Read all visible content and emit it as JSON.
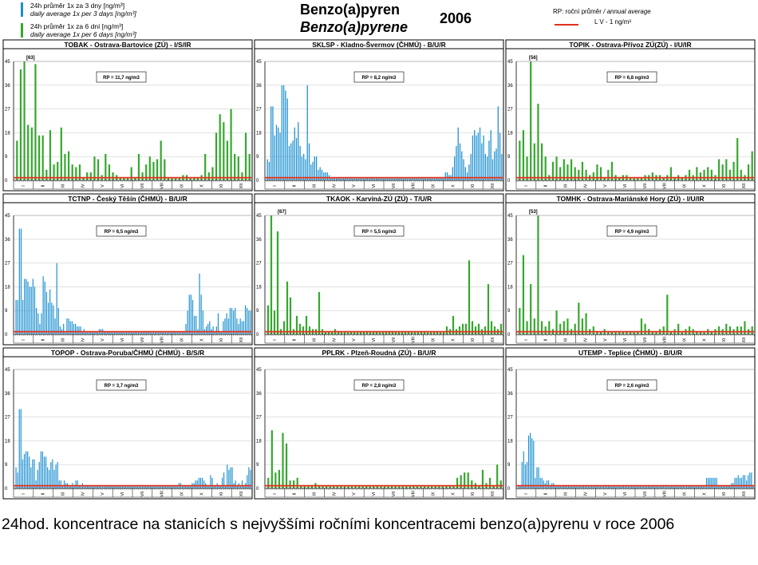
{
  "header": {
    "legend_3day_cz": "24h průměr 1x za 3 dny [ng/m³]",
    "legend_3day_en": "daily average 1x per 3 days [ng/m³]",
    "legend_6day_cz": "24h průměr 1x za 6 dní [ng/m³]",
    "legend_6day_en": "daily average 1x per 6 days [ng/m³]",
    "title_cz": "Benzo(a)pyren",
    "title_en": "Benzo(a)pyrene",
    "year": "2006",
    "rp_label_cz": "RP: roční průměr",
    "rp_label_en": "/ annual average",
    "lv_label": "L V    - 1 ng/m³",
    "colors": {
      "blue": "#1a8fd0",
      "green": "#35a82e",
      "red": "#e0311c"
    }
  },
  "caption": "24hod. koncentrace na stanicích s nejvyššími ročními koncentracemi benzo(a)pyrenu v roce 2006",
  "chart_data": [
    {
      "type": "bar",
      "title": "TOBAK - Ostrava-Bartovice (ZÚ) - I/S/IR",
      "series_type": "green",
      "rp": "RP = 11,7 ng/m3",
      "ylim": [
        0,
        45
      ],
      "yticks": [
        0,
        9,
        18,
        27,
        36,
        45
      ],
      "lv": 1,
      "months": [
        "I",
        "II",
        "III",
        "IV",
        "V",
        "VI",
        "VII",
        "VIII",
        "IX",
        "X",
        "XI",
        "XII"
      ],
      "annotation": "[63]",
      "values": [
        15,
        42,
        45,
        21,
        20,
        44,
        17,
        17,
        4,
        19,
        6,
        7,
        20,
        10,
        11,
        6,
        5,
        6,
        1,
        3,
        3,
        9,
        8,
        2,
        10,
        6,
        3,
        2,
        1,
        1,
        1,
        5,
        1,
        10,
        3,
        6,
        9,
        7,
        8,
        15,
        8,
        1,
        1,
        1,
        1,
        2,
        2,
        1,
        1,
        1,
        2,
        10,
        3,
        5,
        18,
        25,
        22,
        15,
        27,
        10,
        9,
        3,
        18,
        10
      ]
    },
    {
      "type": "bar",
      "title": "SKLSP - Kladno-Švermov (ČHMÚ) - B/U/R",
      "series_type": "blue",
      "rp": "RP = 8,2 ng/m3",
      "ylim": [
        0,
        45
      ],
      "yticks": [
        0,
        9,
        18,
        27,
        36,
        45
      ],
      "lv": 1,
      "months": [
        "I",
        "II",
        "III",
        "IV",
        "V",
        "VI",
        "VII",
        "VIII",
        "IX",
        "X",
        "XI",
        "XII"
      ],
      "annotation": "",
      "values": [
        8,
        7,
        28,
        28,
        17,
        21,
        20,
        18,
        36,
        36,
        34,
        31,
        13,
        14,
        15,
        20,
        16,
        22,
        13,
        9,
        10,
        8,
        36,
        14,
        6,
        7,
        9,
        9,
        4,
        5,
        4,
        3,
        3,
        3,
        2,
        1,
        1,
        1,
        1,
        1,
        1,
        1,
        1,
        1,
        1,
        1,
        1,
        1,
        1,
        1,
        1,
        1,
        1,
        1,
        1,
        1,
        1,
        1,
        1,
        1,
        1,
        1,
        1,
        1,
        1,
        1,
        1,
        1,
        1,
        1,
        1,
        1,
        1,
        1,
        1,
        1,
        1,
        1,
        1,
        1,
        1,
        1,
        1,
        1,
        1,
        1,
        1,
        1,
        1,
        1,
        1,
        1,
        1,
        1,
        1,
        1,
        1,
        1,
        3,
        3,
        2,
        2,
        5,
        9,
        13,
        20,
        14,
        11,
        8,
        5,
        3,
        6,
        10,
        17,
        19,
        17,
        18,
        20,
        14,
        17,
        10,
        9,
        15,
        19,
        8,
        11,
        12,
        28,
        18,
        10
      ]
    },
    {
      "type": "bar",
      "title": "TOPIK - Ostrava-Přívoz ZÚ(ZÚ) - I/U/IR",
      "series_type": "green",
      "rp": "RP = 6,8 ng/m3",
      "ylim": [
        0,
        45
      ],
      "yticks": [
        0,
        9,
        18,
        27,
        36,
        45
      ],
      "lv": 1,
      "months": [
        "I",
        "II",
        "III",
        "IV",
        "V",
        "VI",
        "VII",
        "VIII",
        "IX",
        "X",
        "XI",
        "XII"
      ],
      "annotation": "[56]",
      "values": [
        15,
        19,
        9,
        45,
        14,
        29,
        14,
        9,
        2,
        7,
        9,
        5,
        8,
        6,
        8,
        5,
        4,
        7,
        4,
        2,
        3,
        6,
        5,
        1,
        4,
        7,
        2,
        1,
        2,
        2,
        1,
        1,
        1,
        1,
        2,
        2,
        3,
        2,
        2,
        1,
        2,
        5,
        1,
        2,
        1,
        2,
        4,
        2,
        5,
        3,
        4,
        5,
        4,
        2,
        8,
        6,
        8,
        4,
        7,
        16,
        4,
        2,
        6,
        11
      ]
    },
    {
      "type": "bar",
      "title": "TCTNP - Český Těšín (ČHMÚ) - B/U/R",
      "series_type": "blue",
      "rp": "RP = 6,5 ng/m3",
      "ylim": [
        0,
        45
      ],
      "yticks": [
        0,
        9,
        18,
        27,
        36,
        45
      ],
      "lv": 1,
      "months": [
        "I",
        "II",
        "III",
        "IV",
        "V",
        "VI",
        "VII",
        "VIII",
        "IX",
        "X",
        "XI",
        "XII"
      ],
      "annotation": "",
      "values": [
        13,
        13,
        40,
        40,
        13,
        21,
        21,
        20,
        18,
        18,
        21,
        18,
        10,
        8,
        4,
        8,
        22,
        20,
        16,
        12,
        17,
        12,
        11,
        6,
        27,
        10,
        3,
        2,
        4,
        1,
        6,
        6,
        5,
        5,
        4,
        4,
        3,
        3,
        3,
        1,
        2,
        1,
        1,
        1,
        1,
        1,
        1,
        1,
        1,
        2,
        2,
        2,
        1,
        1,
        1,
        1,
        1,
        1,
        1,
        1,
        1,
        1,
        1,
        1,
        1,
        1,
        1,
        1,
        1,
        1,
        1,
        1,
        1,
        1,
        1,
        1,
        1,
        1,
        1,
        1,
        1,
        1,
        1,
        1,
        1,
        1,
        1,
        1,
        1,
        1,
        1,
        1,
        1,
        1,
        1,
        1,
        1,
        1,
        1,
        1,
        4,
        9,
        15,
        15,
        13,
        7,
        7,
        2,
        23,
        15,
        9,
        2,
        3,
        4,
        5,
        2,
        3,
        1,
        3,
        8,
        1,
        1,
        5,
        6,
        8,
        6,
        10,
        10,
        9,
        10,
        6,
        4,
        6,
        5,
        5,
        11,
        10,
        9,
        9
      ]
    },
    {
      "type": "bar",
      "title": "TKAOK - Karviná-ZÚ (ZÚ) - T/U/R",
      "series_type": "green",
      "rp": "RP = 5,5 ng/m3",
      "ylim": [
        0,
        45
      ],
      "yticks": [
        0,
        9,
        18,
        27,
        36,
        45
      ],
      "lv": 1,
      "months": [
        "I",
        "II",
        "III",
        "IV",
        "V",
        "VI",
        "VII",
        "VIII",
        "IX",
        "X",
        "XI",
        "XII"
      ],
      "annotation": "[67]",
      "values": [
        11,
        45,
        9,
        39,
        2,
        5,
        20,
        14,
        2,
        7,
        4,
        3,
        7,
        3,
        2,
        2,
        16,
        2,
        1,
        1,
        1,
        2,
        1,
        1,
        1,
        1,
        1,
        1,
        1,
        1,
        1,
        1,
        1,
        1,
        1,
        1,
        1,
        1,
        1,
        1,
        1,
        1,
        1,
        1,
        1,
        1,
        1,
        1,
        1,
        1,
        1,
        1,
        1,
        1,
        1,
        1,
        3,
        2,
        7,
        2,
        3,
        4,
        4,
        28,
        5,
        3,
        4,
        2,
        3,
        19,
        5,
        3,
        2,
        4
      ]
    },
    {
      "type": "bar",
      "title": "TOMHK - Ostrava-Mariánské Hory (ZÚ) - I/U/IR",
      "series_type": "green",
      "rp": "RP = 4,9 ng/m3",
      "ylim": [
        0,
        45
      ],
      "yticks": [
        0,
        9,
        18,
        27,
        36,
        45
      ],
      "lv": 1,
      "months": [
        "I",
        "II",
        "III",
        "IV",
        "V",
        "VI",
        "VII",
        "VIII",
        "IX",
        "X",
        "XI",
        "XII"
      ],
      "annotation": "[53]",
      "values": [
        10,
        30,
        5,
        19,
        6,
        45,
        5,
        3,
        5,
        2,
        9,
        4,
        5,
        6,
        2,
        4,
        12,
        6,
        8,
        2,
        3,
        1,
        1,
        2,
        1,
        1,
        1,
        1,
        1,
        1,
        1,
        1,
        1,
        6,
        4,
        2,
        1,
        1,
        2,
        3,
        15,
        1,
        2,
        4,
        1,
        2,
        3,
        2,
        1,
        1,
        1,
        2,
        1,
        2,
        3,
        2,
        4,
        3,
        2,
        3,
        3,
        5,
        2,
        3
      ]
    },
    {
      "type": "bar",
      "title": "TOPOP - Ostrava-Poruba/ČHMÚ (ČHMÚ) - B/S/R",
      "series_type": "blue",
      "rp": "RP = 3,7 ng/m3",
      "ylim": [
        0,
        45
      ],
      "yticks": [
        0,
        9,
        18,
        27,
        36,
        45
      ],
      "lv": 1,
      "months": [
        "I",
        "II",
        "III",
        "IV",
        "V",
        "VI",
        "VII",
        "VIII",
        "IX",
        "X",
        "XI",
        "XII"
      ],
      "annotation": "",
      "values": [
        8,
        6,
        30,
        30,
        11,
        13,
        14,
        14,
        12,
        8,
        11,
        11,
        3,
        7,
        10,
        14,
        14,
        12,
        12,
        8,
        7,
        10,
        11,
        7,
        9,
        10,
        3,
        3,
        1,
        3,
        2,
        2,
        1,
        1,
        2,
        1,
        3,
        3,
        1,
        1,
        2,
        1,
        1,
        1,
        1,
        1,
        1,
        1,
        1,
        1,
        1,
        1,
        1,
        1,
        1,
        1,
        1,
        1,
        1,
        1,
        1,
        1,
        1,
        1,
        1,
        1,
        1,
        1,
        1,
        1,
        1,
        1,
        1,
        1,
        1,
        1,
        1,
        1,
        1,
        1,
        1,
        1,
        1,
        1,
        1,
        1,
        1,
        1,
        1,
        1,
        1,
        1,
        1,
        1,
        1,
        1,
        1,
        1,
        2,
        2,
        1,
        1,
        1,
        1,
        1,
        1,
        2,
        2,
        3,
        3,
        4,
        4,
        4,
        3,
        2,
        1,
        1,
        5,
        4,
        1,
        1,
        2,
        1,
        1,
        4,
        6,
        1,
        9,
        7,
        8,
        8,
        2,
        3,
        1,
        2,
        1,
        3,
        1,
        2,
        5,
        8,
        7
      ]
    },
    {
      "type": "bar",
      "title": "PPLRK - Plzeň-Roudná (ZÚ) - B/U/R",
      "series_type": "green",
      "rp": "RP = 2,8 ng/m3",
      "ylim": [
        0,
        45
      ],
      "yticks": [
        0,
        9,
        18,
        27,
        36,
        45
      ],
      "lv": 1,
      "months": [
        "I",
        "II",
        "III",
        "IV",
        "V",
        "VI",
        "VII",
        "VIII",
        "IX",
        "X",
        "XI",
        "XII"
      ],
      "annotation": "",
      "values": [
        4,
        22,
        6,
        7,
        21,
        17,
        3,
        3,
        4,
        1,
        1,
        1,
        1,
        2,
        1,
        1,
        1,
        1,
        1,
        1,
        1,
        1,
        1,
        1,
        1,
        1,
        1,
        1,
        1,
        1,
        1,
        1,
        1,
        1,
        1,
        1,
        1,
        1,
        1,
        1,
        1,
        1,
        1,
        1,
        1,
        1,
        1,
        1,
        1,
        1,
        1,
        1,
        4,
        5,
        6,
        6,
        3,
        2,
        1,
        7,
        2,
        4,
        1,
        9,
        3
      ]
    },
    {
      "type": "bar",
      "title": "UTEMP - Teplice (ČHMÚ) - B/U/R",
      "series_type": "blue",
      "rp": "RP = 2,6 ng/m3",
      "ylim": [
        0,
        45
      ],
      "yticks": [
        0,
        9,
        18,
        27,
        36,
        45
      ],
      "lv": 1,
      "months": [
        "I",
        "II",
        "III",
        "IV",
        "V",
        "VI",
        "VII",
        "VIII",
        "IX",
        "X",
        "XI",
        "XII"
      ],
      "annotation": "",
      "values": [
        1,
        1,
        10,
        14,
        9,
        10,
        20,
        21,
        19,
        18,
        4,
        8,
        8,
        4,
        4,
        3,
        2,
        3,
        3,
        1,
        2,
        2,
        1,
        1,
        1,
        1,
        1,
        1,
        1,
        1,
        1,
        1,
        1,
        1,
        1,
        1,
        1,
        1,
        1,
        1,
        1,
        1,
        1,
        1,
        1,
        1,
        1,
        1,
        1,
        1,
        1,
        1,
        1,
        1,
        1,
        1,
        1,
        1,
        1,
        1,
        1,
        1,
        1,
        1,
        1,
        1,
        1,
        1,
        1,
        1,
        1,
        1,
        1,
        1,
        1,
        1,
        1,
        1,
        1,
        1,
        1,
        1,
        1,
        1,
        1,
        1,
        1,
        1,
        1,
        1,
        1,
        1,
        1,
        1,
        1,
        1,
        1,
        1,
        1,
        1,
        1,
        1,
        1,
        1,
        1,
        1,
        1,
        1,
        1,
        1,
        1,
        1,
        1,
        4,
        4,
        4,
        4,
        4,
        4,
        4,
        1,
        1,
        1,
        1,
        1,
        1,
        1,
        1,
        2,
        2,
        4,
        4,
        5,
        4,
        4,
        5,
        5,
        3,
        5,
        6,
        6,
        1
      ]
    }
  ]
}
